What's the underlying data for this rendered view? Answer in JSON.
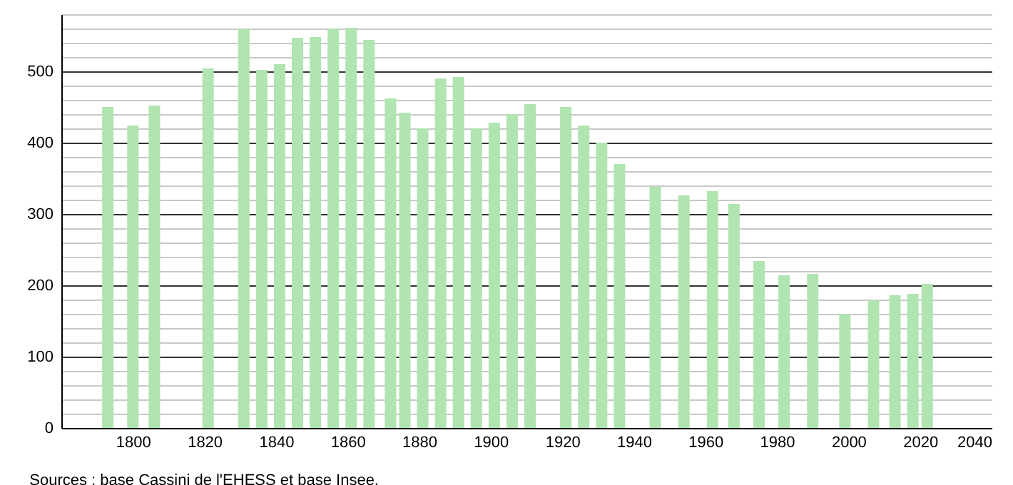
{
  "chart_data": {
    "type": "bar",
    "x": [
      1793,
      1800,
      1806,
      1821,
      1831,
      1836,
      1841,
      1846,
      1851,
      1856,
      1861,
      1866,
      1872,
      1876,
      1881,
      1886,
      1891,
      1896,
      1901,
      1906,
      1911,
      1921,
      1926,
      1931,
      1936,
      1946,
      1954,
      1962,
      1968,
      1975,
      1982,
      1990,
      1999,
      2007,
      2013,
      2018,
      2022
    ],
    "values": [
      450,
      424,
      452,
      504,
      559,
      502,
      510,
      547,
      548,
      560,
      561,
      544,
      462,
      442,
      420,
      490,
      492,
      420,
      428,
      440,
      454,
      450,
      424,
      400,
      370,
      338,
      326,
      332,
      314,
      234,
      214,
      216,
      160,
      179,
      186,
      188,
      202
    ],
    "color": "#b0e4b0",
    "xlim": [
      1780,
      2040
    ],
    "xticks": [
      1800,
      1820,
      1840,
      1860,
      1880,
      1900,
      1920,
      1940,
      1960,
      1980,
      2000,
      2020,
      2040
    ],
    "ylim": [
      0,
      580
    ],
    "yticks": [
      0,
      {
        "value": 20,
        "label": null
      },
      {
        "value": 40,
        "label": null
      },
      {
        "value": 60,
        "label": null
      },
      {
        "value": 80,
        "label": null
      },
      100,
      {
        "value": 120,
        "label": null
      },
      {
        "value": 140,
        "label": null
      },
      {
        "value": 160,
        "label": null
      },
      {
        "value": 180,
        "label": null
      },
      200,
      {
        "value": 220,
        "label": null
      },
      {
        "value": 240,
        "label": null
      },
      {
        "value": 260,
        "label": null
      },
      {
        "value": 280,
        "label": null
      },
      300,
      {
        "value": 320,
        "label": null
      },
      {
        "value": 340,
        "label": null
      },
      {
        "value": 360,
        "label": null
      },
      {
        "value": 380,
        "label": null
      },
      400,
      {
        "value": 420,
        "label": null
      },
      {
        "value": 440,
        "label": null
      },
      {
        "value": 460,
        "label": null
      },
      {
        "value": 480,
        "label": null
      },
      500,
      {
        "value": 520,
        "label": null
      },
      {
        "value": 540,
        "label": null
      },
      {
        "value": 560,
        "label": null
      },
      {
        "value": 580,
        "label": null
      }
    ],
    "grid": "y",
    "annotations": [
      "Sources : base Cassini de l'EHESS et base Insee."
    ]
  }
}
